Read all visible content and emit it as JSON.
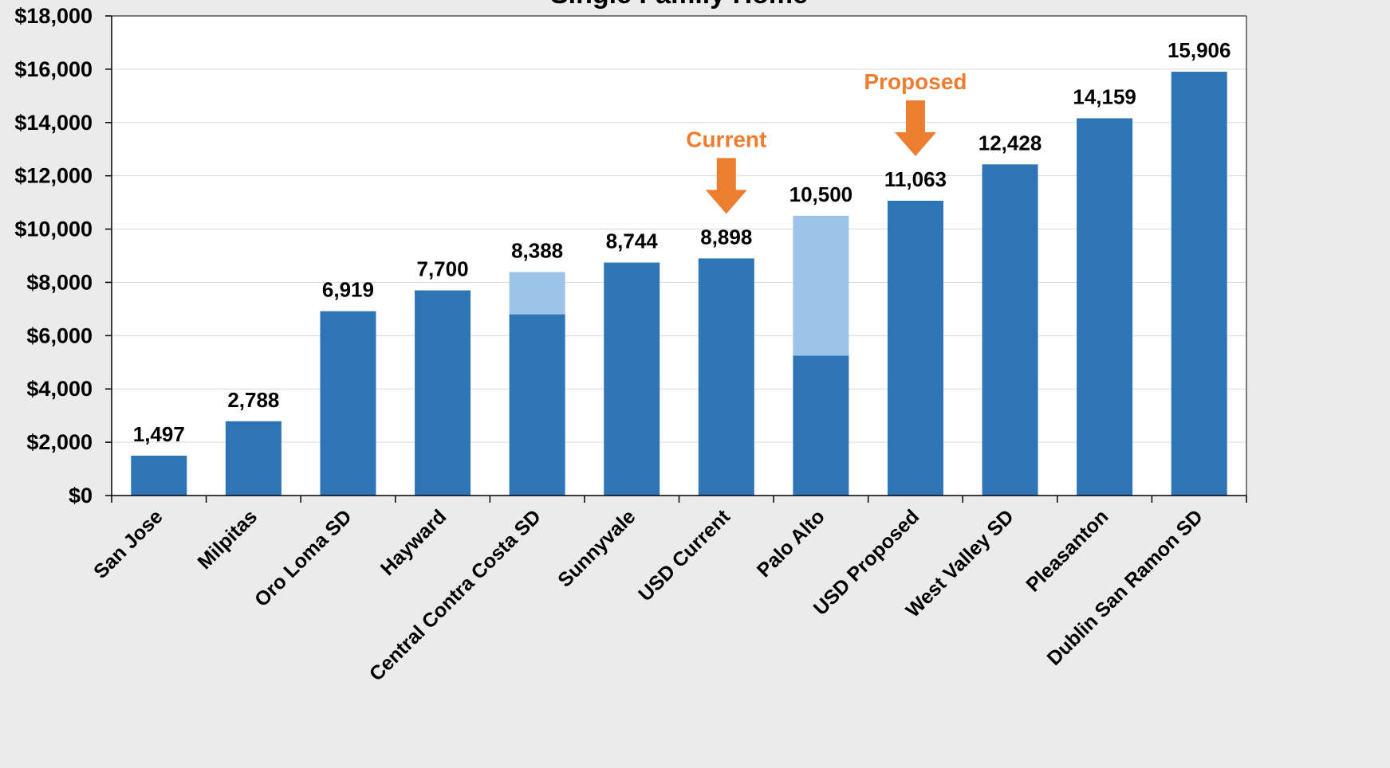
{
  "chart_data": {
    "type": "bar",
    "title": "Single Family Home",
    "xlabel": "",
    "ylabel": "",
    "ylim": [
      0,
      18000
    ],
    "y_ticks": [
      "$0",
      "$2,000",
      "$4,000",
      "$6,000",
      "$8,000",
      "$10,000",
      "$12,000",
      "$14,000",
      "$16,000",
      "$18,000"
    ],
    "grid": true,
    "categories": [
      "San Jose",
      "Milpitas",
      "Oro Loma SD",
      "Hayward",
      "Central Contra Costa SD",
      "Sunnyvale",
      "USD Current",
      "Palo Alto",
      "USD Proposed",
      "West Valley SD",
      "Pleasanton",
      "Dublin San Ramon SD"
    ],
    "series": [
      {
        "color": "#2e75b6",
        "values": [
          1497,
          2788,
          6919,
          7700,
          6800,
          8744,
          8898,
          5250,
          11063,
          12428,
          14159,
          15906
        ]
      },
      {
        "color": "#9dc3e6",
        "values": [
          0,
          0,
          0,
          0,
          1588,
          0,
          0,
          5250,
          0,
          0,
          0,
          0
        ]
      }
    ],
    "totals": [
      1497,
      2788,
      6919,
      7700,
      8388,
      8744,
      8898,
      10500,
      11063,
      12428,
      14159,
      15906
    ],
    "total_labels": [
      "1,497",
      "2,788",
      "6,919",
      "7,700",
      "8,388",
      "8,744",
      "8,898",
      "10,500",
      "11,063",
      "12,428",
      "14,159",
      "15,906"
    ],
    "annotations": [
      {
        "text": "Current",
        "category": "USD Current",
        "color": "#ed7d31"
      },
      {
        "text": "Proposed",
        "category": "USD Proposed",
        "color": "#ed7d31"
      }
    ]
  }
}
